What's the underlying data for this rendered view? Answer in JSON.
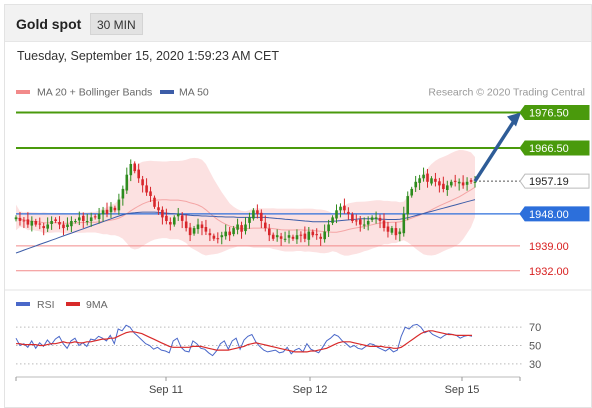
{
  "header": {
    "title": "Gold spot",
    "timeframe": "30 MIN"
  },
  "timestamp": "Tuesday, September 15, 2020 1:59:23 AM CET",
  "legend": {
    "ma_bb": "MA 20 + Bollinger Bands",
    "ma50": "MA 50",
    "copyright": "Research © 2020 Trading Central",
    "rsi": "RSI",
    "rsi_ma": "9MA"
  },
  "colors": {
    "resistance": "#4a9a0c",
    "support": "#f28a8a",
    "pivot": "#2c6fdb",
    "candle_up": "#2e8b1e",
    "candle_down": "#d8262b",
    "bollinger": "#fbd7d7",
    "ma50": "#3d5da8",
    "rsi": "#4a68c9",
    "rsi_ma": "#d82a2a",
    "arrow": "#2e5c97",
    "last_price": "#222222"
  },
  "chart_data": {
    "type": "candlestick",
    "price_range": [
      1928,
      1980
    ],
    "levels": [
      {
        "value": 1976.5,
        "label": "1976.50",
        "kind": "resistance"
      },
      {
        "value": 1966.5,
        "label": "1966.50",
        "kind": "resistance"
      },
      {
        "value": 1957.19,
        "label": "1957.19",
        "kind": "last"
      },
      {
        "value": 1948.0,
        "label": "1948.00",
        "kind": "pivot"
      },
      {
        "value": 1939.0,
        "label": "1939.00",
        "kind": "support"
      },
      {
        "value": 1932.0,
        "label": "1932.00",
        "kind": "support"
      }
    ],
    "x_ticks": [
      "Sep 11",
      "Sep 12",
      "Sep 15"
    ],
    "closes": [
      1947,
      1946,
      1946,
      1945,
      1946,
      1945,
      1945,
      1944,
      1945,
      1946,
      1946,
      1945,
      1944,
      1945,
      1946,
      1946,
      1947,
      1946,
      1946,
      1947,
      1947,
      1948,
      1949,
      1948,
      1950,
      1949,
      1952,
      1955,
      1959,
      1962,
      1960,
      1958,
      1956,
      1954,
      1953,
      1950,
      1949,
      1947,
      1946,
      1945,
      1947,
      1948,
      1946,
      1944,
      1942,
      1944,
      1945,
      1944,
      1943,
      1942,
      1941,
      1941,
      1942,
      1943,
      1942,
      1944,
      1945,
      1943,
      1945,
      1947,
      1949,
      1948,
      1946,
      1944,
      1942,
      1941,
      1942,
      1941,
      1941,
      1942,
      1941,
      1942,
      1942,
      1941,
      1943,
      1942,
      1942,
      1941,
      1943,
      1945,
      1947,
      1949,
      1950,
      1949,
      1948,
      1946,
      1946,
      1945,
      1945,
      1946,
      1947,
      1947,
      1946,
      1944,
      1943,
      1944,
      1942,
      1943,
      1948,
      1953,
      1955,
      1957,
      1958,
      1959,
      1957,
      1958,
      1957,
      1956,
      1955,
      1956,
      1957,
      1957,
      1957,
      1956,
      1957,
      1957,
      1957
    ],
    "ma50": [
      1937,
      1937.4,
      1937.8,
      1938.2,
      1938.6,
      1939,
      1939.4,
      1939.8,
      1940.2,
      1940.6,
      1941,
      1941.4,
      1941.8,
      1942.2,
      1942.6,
      1943,
      1943.4,
      1943.8,
      1944.2,
      1944.6,
      1945,
      1945.4,
      1945.8,
      1946.2,
      1946.6,
      1947,
      1947.4,
      1947.7,
      1948,
      1948.2,
      1948.3,
      1948.4,
      1948.5,
      1948.5,
      1948.5,
      1948.5,
      1948.4,
      1948.3,
      1948.2,
      1948.1,
      1948,
      1947.9,
      1947.8,
      1947.7,
      1947.6,
      1947.5,
      1947.5,
      1947.4,
      1947.4,
      1947.3,
      1947.3,
      1947.2,
      1947.2,
      1947.1,
      1947.1,
      1947.1,
      1947,
      1947,
      1947,
      1947,
      1947,
      1947,
      1947,
      1947,
      1946.9,
      1946.8,
      1946.7,
      1946.6,
      1946.5,
      1946.4,
      1946.3,
      1946.2,
      1946.1,
      1946,
      1945.9,
      1945.8,
      1945.8,
      1945.8,
      1945.8,
      1945.8,
      1945.9,
      1946,
      1946.1,
      1946.2,
      1946.3,
      1946.4,
      1946.5,
      1946.6,
      1946.6,
      1946.6,
      1946.6,
      1946.6,
      1946.5,
      1946.5,
      1946.4,
      1946.4,
      1946.4,
      1946.5,
      1946.7,
      1946.9,
      1947.2,
      1947.5,
      1947.8,
      1948.1,
      1948.4,
      1948.7,
      1949,
      1949.3,
      1949.6,
      1949.9,
      1950.2,
      1950.5,
      1950.8,
      1951.1,
      1951.4,
      1951.7,
      1952
    ],
    "rsi_range": [
      20,
      80
    ],
    "rsi_levels": [
      70,
      50,
      30
    ],
    "rsi": [
      58,
      50,
      52,
      48,
      55,
      47,
      53,
      49,
      56,
      51,
      57,
      60,
      52,
      47,
      55,
      58,
      50,
      53,
      49,
      57,
      56,
      60,
      58,
      55,
      61,
      52,
      68,
      66,
      72,
      70,
      64,
      60,
      56,
      52,
      50,
      46,
      48,
      45,
      44,
      42,
      55,
      58,
      48,
      44,
      43,
      55,
      52,
      47,
      46,
      42,
      39,
      44,
      52,
      55,
      46,
      55,
      58,
      46,
      56,
      60,
      62,
      54,
      49,
      45,
      43,
      44,
      45,
      42,
      43,
      48,
      41,
      45,
      47,
      43,
      52,
      46,
      44,
      42,
      48,
      55,
      58,
      62,
      60,
      55,
      52,
      48,
      50,
      47,
      46,
      49,
      52,
      51,
      48,
      46,
      44,
      47,
      43,
      45,
      60,
      70,
      68,
      72,
      73,
      70,
      64,
      66,
      62,
      60,
      58,
      61,
      63,
      62,
      61,
      58,
      60,
      61,
      60
    ],
    "rsi_ma": [
      52,
      52,
      51,
      51,
      51,
      51,
      50,
      50,
      51,
      52,
      52,
      53,
      54,
      53,
      53,
      54,
      53,
      53,
      54,
      54,
      55,
      56,
      57,
      57,
      58,
      58,
      60,
      62,
      64,
      65,
      65,
      64,
      63,
      61,
      59,
      57,
      55,
      53,
      51,
      49,
      48,
      48,
      48,
      48,
      48,
      49,
      49,
      49,
      48,
      47,
      46,
      45,
      45,
      45,
      45,
      46,
      47,
      48,
      49,
      51,
      52,
      53,
      52,
      51,
      50,
      49,
      48,
      47,
      46,
      45,
      44,
      43,
      43,
      43,
      43,
      44,
      44,
      45,
      46,
      47,
      49,
      51,
      53,
      54,
      54,
      54,
      53,
      52,
      51,
      50,
      49,
      49,
      49,
      49,
      48,
      48,
      47,
      47,
      48,
      51,
      54,
      57,
      60,
      63,
      65,
      66,
      66,
      65,
      64,
      63,
      62,
      62,
      61,
      61,
      61,
      61,
      61
    ]
  }
}
